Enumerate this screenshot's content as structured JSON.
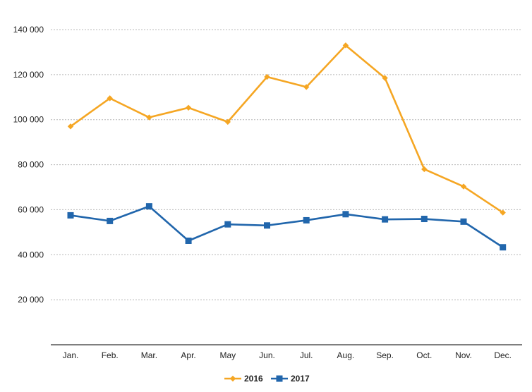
{
  "chart_data": {
    "type": "line",
    "title": "",
    "xlabel": "",
    "ylabel": "",
    "categories": [
      "Jan.",
      "Feb.",
      "Mar.",
      "Apr.",
      "May",
      "Jun.",
      "Jul.",
      "Aug.",
      "Sep.",
      "Oct.",
      "Nov.",
      "Dec."
    ],
    "y_ticks": [
      {
        "value": 20000,
        "label": "20 000"
      },
      {
        "value": 40000,
        "label": "40 000"
      },
      {
        "value": 60000,
        "label": "60 000"
      },
      {
        "value": 80000,
        "label": "80 000"
      },
      {
        "value": 100000,
        "label": "100 000"
      },
      {
        "value": 120000,
        "label": "120 000"
      },
      {
        "value": 140000,
        "label": "140 000"
      }
    ],
    "ylim": [
      0,
      140000
    ],
    "grid": "horizontal dashed",
    "legend": "bottom-center",
    "series": [
      {
        "name": "2016",
        "color": "#f5a623",
        "marker": "diamond",
        "values": [
          97000,
          109500,
          101000,
          105300,
          99000,
          119000,
          114500,
          133000,
          118500,
          78000,
          70300,
          58700
        ]
      },
      {
        "name": "2017",
        "color": "#2166ac",
        "marker": "square",
        "values": [
          57500,
          55000,
          61500,
          46200,
          53500,
          53000,
          55300,
          58000,
          55700,
          55900,
          54700,
          43300
        ]
      }
    ]
  }
}
